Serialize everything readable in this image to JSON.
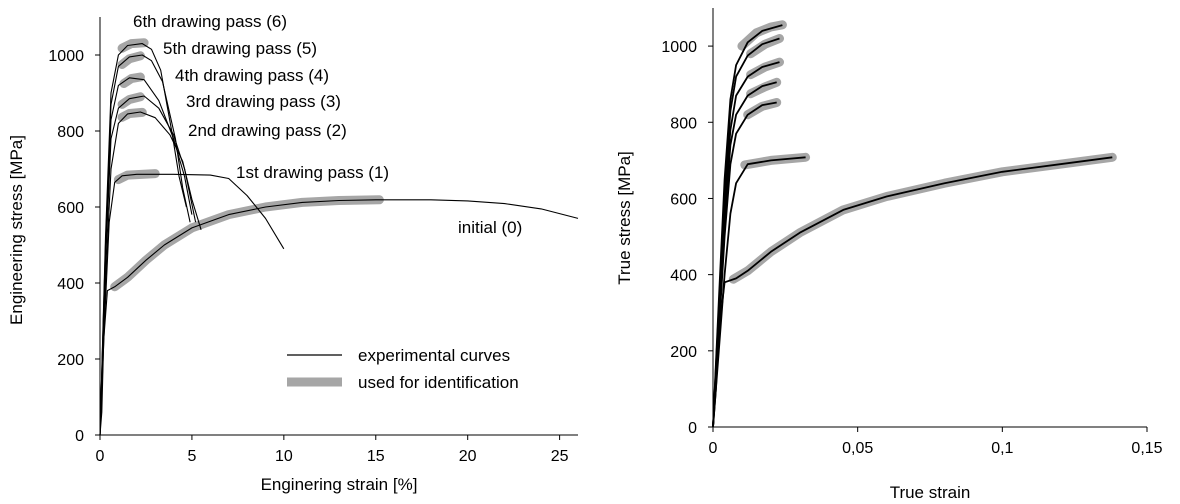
{
  "chart_data": [
    {
      "type": "line",
      "xlabel": "Enginering strain [%]",
      "ylabel": "Engineering stress [MPa]",
      "xlim": [
        0,
        26
      ],
      "ylim": [
        0,
        1100
      ],
      "xticks": [
        "0",
        "5",
        "10",
        "15",
        "20",
        "25"
      ],
      "yticks": [
        "0",
        "200",
        "400",
        "600",
        "800",
        "1000"
      ],
      "grid": false,
      "legend": {
        "placement": "bottom-right",
        "entries": [
          {
            "label": "experimental curves",
            "style": "thin-black"
          },
          {
            "label": "used for identification",
            "style": "thick-gray"
          }
        ]
      },
      "annotations": [
        "6th drawing pass (6)",
        "5th drawing pass (5)",
        "4th drawing pass (4)",
        "3rd drawing pass (3)",
        "2nd drawing pass (2)",
        "1st drawing pass (1)",
        "initial (0)"
      ],
      "series": [
        {
          "name": "initial (0)",
          "points": [
            [
              0,
              0
            ],
            [
              0.1,
              60
            ],
            [
              0.2,
              250
            ],
            [
              0.4,
              380
            ],
            [
              0.8,
              390
            ],
            [
              1.5,
              415
            ],
            [
              2.5,
              460
            ],
            [
              3.5,
              500
            ],
            [
              5,
              545
            ],
            [
              7,
              580
            ],
            [
              9,
              600
            ],
            [
              11,
              612
            ],
            [
              13,
              617
            ],
            [
              15,
              619
            ],
            [
              18,
              619
            ],
            [
              20,
              616
            ],
            [
              22,
              609
            ],
            [
              24,
              595
            ],
            [
              26,
              570
            ]
          ],
          "identification": [
            [
              0.8,
              390
            ],
            [
              1.5,
              415
            ],
            [
              2.5,
              460
            ],
            [
              3.5,
              500
            ],
            [
              5,
              545
            ],
            [
              7,
              580
            ],
            [
              9,
              600
            ],
            [
              11,
              612
            ],
            [
              13,
              617
            ],
            [
              15.2,
              619
            ]
          ]
        },
        {
          "name": "1st drawing pass (1)",
          "points": [
            [
              0,
              0
            ],
            [
              0.25,
              300
            ],
            [
              0.5,
              560
            ],
            [
              0.8,
              665
            ],
            [
              1.2,
              682
            ],
            [
              2,
              686
            ],
            [
              4,
              686
            ],
            [
              6,
              684
            ],
            [
              7,
              675
            ],
            [
              8,
              630
            ],
            [
              9,
              570
            ],
            [
              10,
              490
            ]
          ],
          "identification": [
            [
              1,
              672
            ],
            [
              1.5,
              684
            ],
            [
              3,
              688
            ]
          ]
        },
        {
          "name": "2nd drawing pass (2)",
          "points": [
            [
              0,
              0
            ],
            [
              0.3,
              400
            ],
            [
              0.6,
              700
            ],
            [
              1.0,
              820
            ],
            [
              1.5,
              845
            ],
            [
              2.2,
              850
            ],
            [
              3,
              835
            ],
            [
              3.8,
              790
            ],
            [
              4.5,
              720
            ],
            [
              5,
              620
            ],
            [
              5.5,
              540
            ]
          ],
          "identification": [
            [
              1.2,
              836
            ],
            [
              1.6,
              846
            ],
            [
              2.3,
              849
            ]
          ]
        },
        {
          "name": "3rd drawing pass (3)",
          "points": [
            [
              0,
              0
            ],
            [
              0.3,
              450
            ],
            [
              0.6,
              780
            ],
            [
              1.0,
              860
            ],
            [
              1.6,
              885
            ],
            [
              2.4,
              892
            ],
            [
              3.2,
              860
            ],
            [
              4,
              790
            ],
            [
              4.6,
              700
            ],
            [
              5.2,
              560
            ]
          ],
          "identification": [
            [
              1.2,
              870
            ],
            [
              1.6,
              883
            ],
            [
              2.2,
              890
            ]
          ]
        },
        {
          "name": "4th drawing pass (4)",
          "points": [
            [
              0,
              0
            ],
            [
              0.3,
              480
            ],
            [
              0.6,
              830
            ],
            [
              1.0,
              920
            ],
            [
              1.6,
              940
            ],
            [
              2.4,
              935
            ],
            [
              3.2,
              880
            ],
            [
              4,
              780
            ],
            [
              4.6,
              680
            ],
            [
              5,
              580
            ]
          ],
          "identification": [
            [
              1.3,
              925
            ],
            [
              1.7,
              938
            ],
            [
              2.2,
              942
            ]
          ]
        },
        {
          "name": "5th drawing pass (5)",
          "points": [
            [
              0,
              0
            ],
            [
              0.3,
              500
            ],
            [
              0.6,
              870
            ],
            [
              1.0,
              970
            ],
            [
              1.6,
              995
            ],
            [
              2.3,
              1000
            ],
            [
              2.8,
              985
            ],
            [
              3.4,
              930
            ],
            [
              4.1,
              780
            ],
            [
              4.5,
              650
            ],
            [
              4.9,
              560
            ]
          ],
          "identification": [
            [
              1.2,
              975
            ],
            [
              1.6,
              990
            ],
            [
              2.2,
              998
            ]
          ]
        },
        {
          "name": "6th drawing pass (6)",
          "points": [
            [
              0,
              0
            ],
            [
              0.3,
              520
            ],
            [
              0.6,
              900
            ],
            [
              1.0,
              1000
            ],
            [
              1.5,
              1025
            ],
            [
              2.3,
              1030
            ],
            [
              2.8,
              1015
            ],
            [
              3.3,
              960
            ],
            [
              3.9,
              800
            ],
            [
              4.3,
              680
            ],
            [
              4.7,
              600
            ]
          ],
          "identification": [
            [
              1.2,
              1018
            ],
            [
              1.7,
              1030
            ],
            [
              2.4,
              1032
            ]
          ]
        }
      ]
    },
    {
      "type": "line",
      "xlabel": "True strain",
      "ylabel": "True stress [MPa]",
      "xlim": [
        0,
        0.15
      ],
      "ylim": [
        0,
        1100
      ],
      "xticks": [
        "0",
        "0,05",
        "0,1",
        "0,15"
      ],
      "yticks": [
        "0",
        "200",
        "400",
        "600",
        "800",
        "1000"
      ],
      "grid": false,
      "series": [
        {
          "name": "initial (0)",
          "points": [
            [
              0,
              0
            ],
            [
              0.001,
              100
            ],
            [
              0.002,
              250
            ],
            [
              0.004,
              380
            ],
            [
              0.008,
              390
            ],
            [
              0.012,
              410
            ],
            [
              0.02,
              460
            ],
            [
              0.03,
              510
            ],
            [
              0.045,
              570
            ],
            [
              0.06,
              605
            ],
            [
              0.08,
              640
            ],
            [
              0.1,
              670
            ],
            [
              0.12,
              690
            ],
            [
              0.138,
              708
            ]
          ],
          "identification": [
            [
              0.007,
              388
            ],
            [
              0.012,
              410
            ],
            [
              0.02,
              460
            ],
            [
              0.03,
              510
            ],
            [
              0.045,
              570
            ],
            [
              0.06,
              605
            ],
            [
              0.08,
              640
            ],
            [
              0.1,
              670
            ],
            [
              0.12,
              690
            ],
            [
              0.138,
              708
            ]
          ]
        },
        {
          "name": "1st drawing pass (1)",
          "points": [
            [
              0,
              0
            ],
            [
              0.002,
              200
            ],
            [
              0.004,
              400
            ],
            [
              0.006,
              560
            ],
            [
              0.008,
              640
            ],
            [
              0.012,
              690
            ],
            [
              0.02,
              700
            ],
            [
              0.032,
              708
            ]
          ],
          "identification": [
            [
              0.011,
              688
            ],
            [
              0.02,
              700
            ],
            [
              0.032,
              708
            ]
          ]
        },
        {
          "name": "2nd drawing pass (2)",
          "points": [
            [
              0,
              0
            ],
            [
              0.002,
              250
            ],
            [
              0.004,
              500
            ],
            [
              0.006,
              690
            ],
            [
              0.008,
              770
            ],
            [
              0.012,
              820
            ],
            [
              0.017,
              845
            ],
            [
              0.022,
              852
            ]
          ],
          "identification": [
            [
              0.012,
              820
            ],
            [
              0.017,
              842
            ],
            [
              0.022,
              852
            ]
          ]
        },
        {
          "name": "3rd drawing pass (3)",
          "points": [
            [
              0,
              0
            ],
            [
              0.002,
              270
            ],
            [
              0.004,
              540
            ],
            [
              0.006,
              740
            ],
            [
              0.008,
              820
            ],
            [
              0.012,
              870
            ],
            [
              0.017,
              895
            ],
            [
              0.022,
              905
            ]
          ],
          "identification": [
            [
              0.013,
              875
            ],
            [
              0.018,
              893
            ],
            [
              0.022,
              905
            ]
          ]
        },
        {
          "name": "4th drawing pass (4)",
          "points": [
            [
              0,
              0
            ],
            [
              0.002,
              290
            ],
            [
              0.004,
              580
            ],
            [
              0.006,
              780
            ],
            [
              0.008,
              870
            ],
            [
              0.012,
              920
            ],
            [
              0.017,
              945
            ],
            [
              0.023,
              958
            ]
          ],
          "identification": [
            [
              0.013,
              925
            ],
            [
              0.018,
              945
            ],
            [
              0.023,
              958
            ]
          ]
        },
        {
          "name": "5th drawing pass (5)",
          "points": [
            [
              0,
              0
            ],
            [
              0.002,
              310
            ],
            [
              0.004,
              620
            ],
            [
              0.006,
              830
            ],
            [
              0.008,
              920
            ],
            [
              0.012,
              975
            ],
            [
              0.017,
              1005
            ],
            [
              0.023,
              1020
            ]
          ],
          "identification": [
            [
              0.013,
              980
            ],
            [
              0.018,
              1005
            ],
            [
              0.023,
              1020
            ]
          ]
        },
        {
          "name": "6th drawing pass (6)",
          "points": [
            [
              0,
              0
            ],
            [
              0.002,
              330
            ],
            [
              0.004,
              650
            ],
            [
              0.006,
              860
            ],
            [
              0.008,
              950
            ],
            [
              0.012,
              1010
            ],
            [
              0.017,
              1040
            ],
            [
              0.024,
              1055
            ]
          ],
          "identification": [
            [
              0.01,
              1000
            ],
            [
              0.015,
              1035
            ],
            [
              0.02,
              1050
            ],
            [
              0.024,
              1056
            ]
          ]
        }
      ]
    }
  ]
}
